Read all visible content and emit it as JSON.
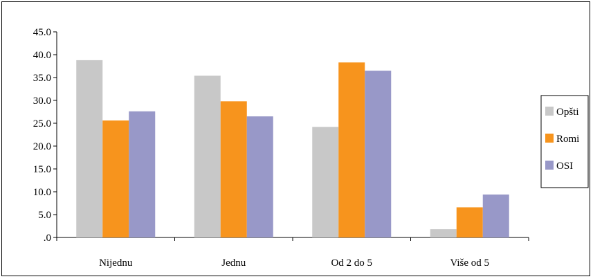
{
  "chart_data": {
    "type": "bar",
    "categories": [
      "Nijednu",
      "Jednu",
      "Od 2 do 5",
      "Više od 5"
    ],
    "series": [
      {
        "name": "Opšti",
        "values": [
          38.8,
          35.4,
          24.2,
          1.8
        ],
        "color": "#c8c8c8"
      },
      {
        "name": "Romi",
        "values": [
          25.6,
          29.8,
          38.3,
          6.6
        ],
        "color": "#f7941d"
      },
      {
        "name": "OSI",
        "values": [
          27.6,
          26.5,
          36.5,
          9.4
        ],
        "color": "#9898c8"
      }
    ],
    "yticks": [
      "45.0",
      "40.0",
      "35.0",
      "30.0",
      "25.0",
      "20.0",
      "15.0",
      "10.0",
      "5.0",
      ".0"
    ],
    "ylim": [
      0,
      45
    ],
    "title": "",
    "xlabel": "",
    "ylabel": "",
    "grid": false,
    "legend_position": "right"
  }
}
